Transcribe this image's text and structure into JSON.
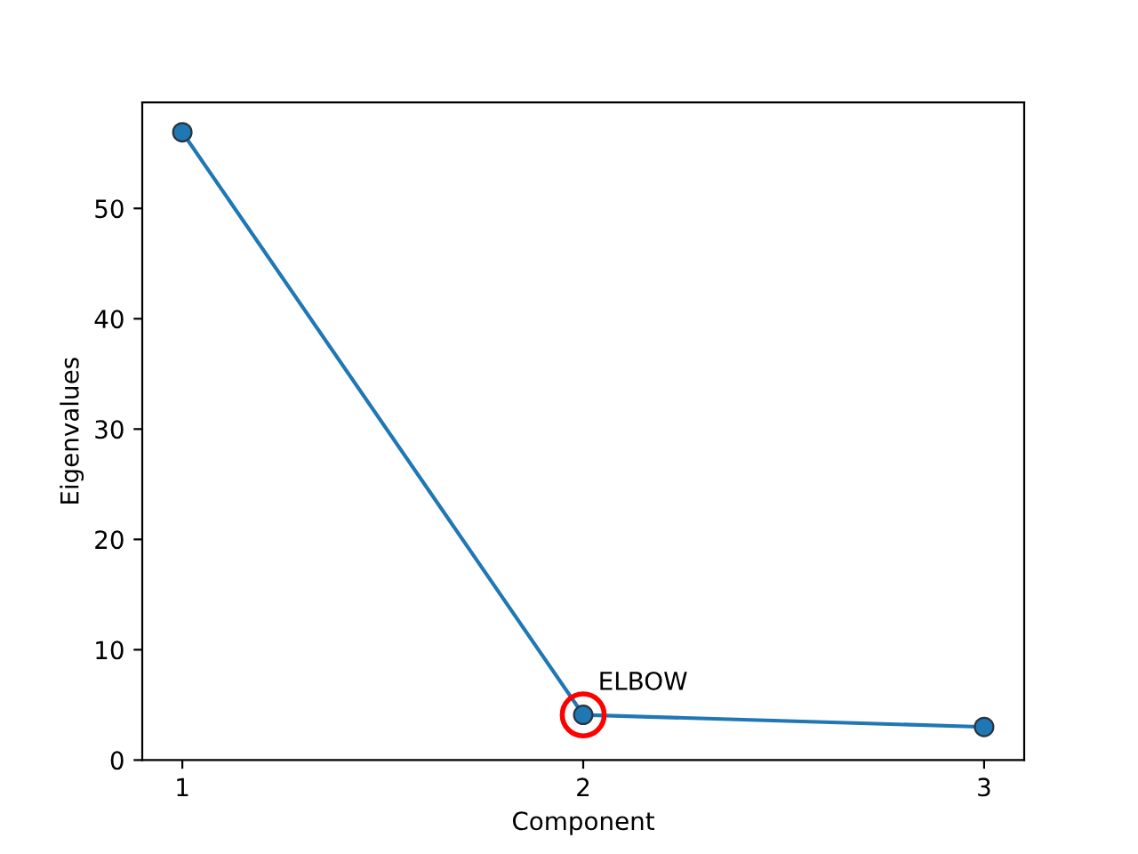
{
  "chart_data": {
    "type": "line",
    "xlabel": "Component",
    "ylabel": "Eigenvalues",
    "x": [
      1,
      2,
      3
    ],
    "series": [
      {
        "color": "#1f77b4",
        "values": [
          56.9,
          4.1,
          3.0
        ]
      }
    ],
    "xlim": [
      0.9,
      3.1
    ],
    "ylim": [
      0,
      59.6
    ],
    "xticks": [
      1,
      2,
      3
    ],
    "yticks": [
      0,
      10,
      20,
      30,
      40,
      50
    ],
    "marker": "circle",
    "line_style": "solid",
    "annotations": [
      {
        "text": "ELBOW",
        "x": 2,
        "y": 4.1
      }
    ]
  }
}
